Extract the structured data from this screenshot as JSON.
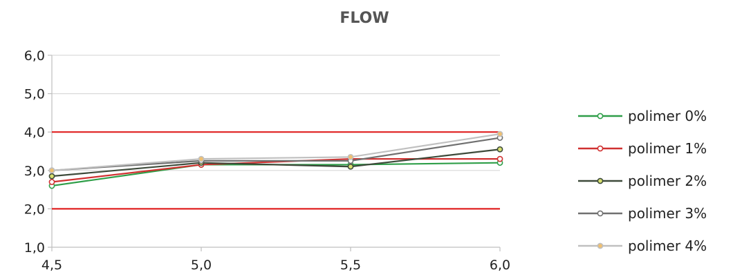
{
  "chart_data": {
    "type": "line",
    "title": "FLOW",
    "xlabel": "",
    "ylabel": "",
    "x": [
      4.5,
      5.0,
      5.5,
      6.0
    ],
    "x_tick_labels": [
      "4,5",
      "5,0",
      "5,5",
      "6,0"
    ],
    "ylim": [
      1.0,
      6.0
    ],
    "y_tick_values": [
      1.0,
      2.0,
      3.0,
      4.0,
      5.0,
      6.0
    ],
    "y_tick_labels": [
      "1,0",
      "2,0",
      "3,0",
      "4,0",
      "5,0",
      "6,0"
    ],
    "grid": "horizontal",
    "legend_position": "right",
    "series": [
      {
        "name": "polimer 0%",
        "values": [
          2.6,
          3.15,
          3.15,
          3.2
        ],
        "color": "#2e9e48",
        "marker_fill": "#ffffff"
      },
      {
        "name": "polimer 1%",
        "values": [
          2.7,
          3.15,
          3.3,
          3.3
        ],
        "color": "#d03030",
        "marker_fill": "#ffffff"
      },
      {
        "name": "polimer 2%",
        "values": [
          2.85,
          3.2,
          3.1,
          3.55
        ],
        "color": "#3d4a3a",
        "marker_fill": "#d8e070"
      },
      {
        "name": "polimer 3%",
        "values": [
          3.0,
          3.25,
          3.25,
          3.85
        ],
        "color": "#707070",
        "marker_fill": "#ffffff"
      },
      {
        "name": "polimer 4%",
        "values": [
          3.0,
          3.3,
          3.35,
          3.95
        ],
        "color": "#c0c0c0",
        "marker_fill": "#f0c070"
      }
    ],
    "reference_lines": [
      {
        "y": 4.0,
        "color": "#e02020"
      },
      {
        "y": 2.0,
        "color": "#e02020"
      }
    ]
  }
}
